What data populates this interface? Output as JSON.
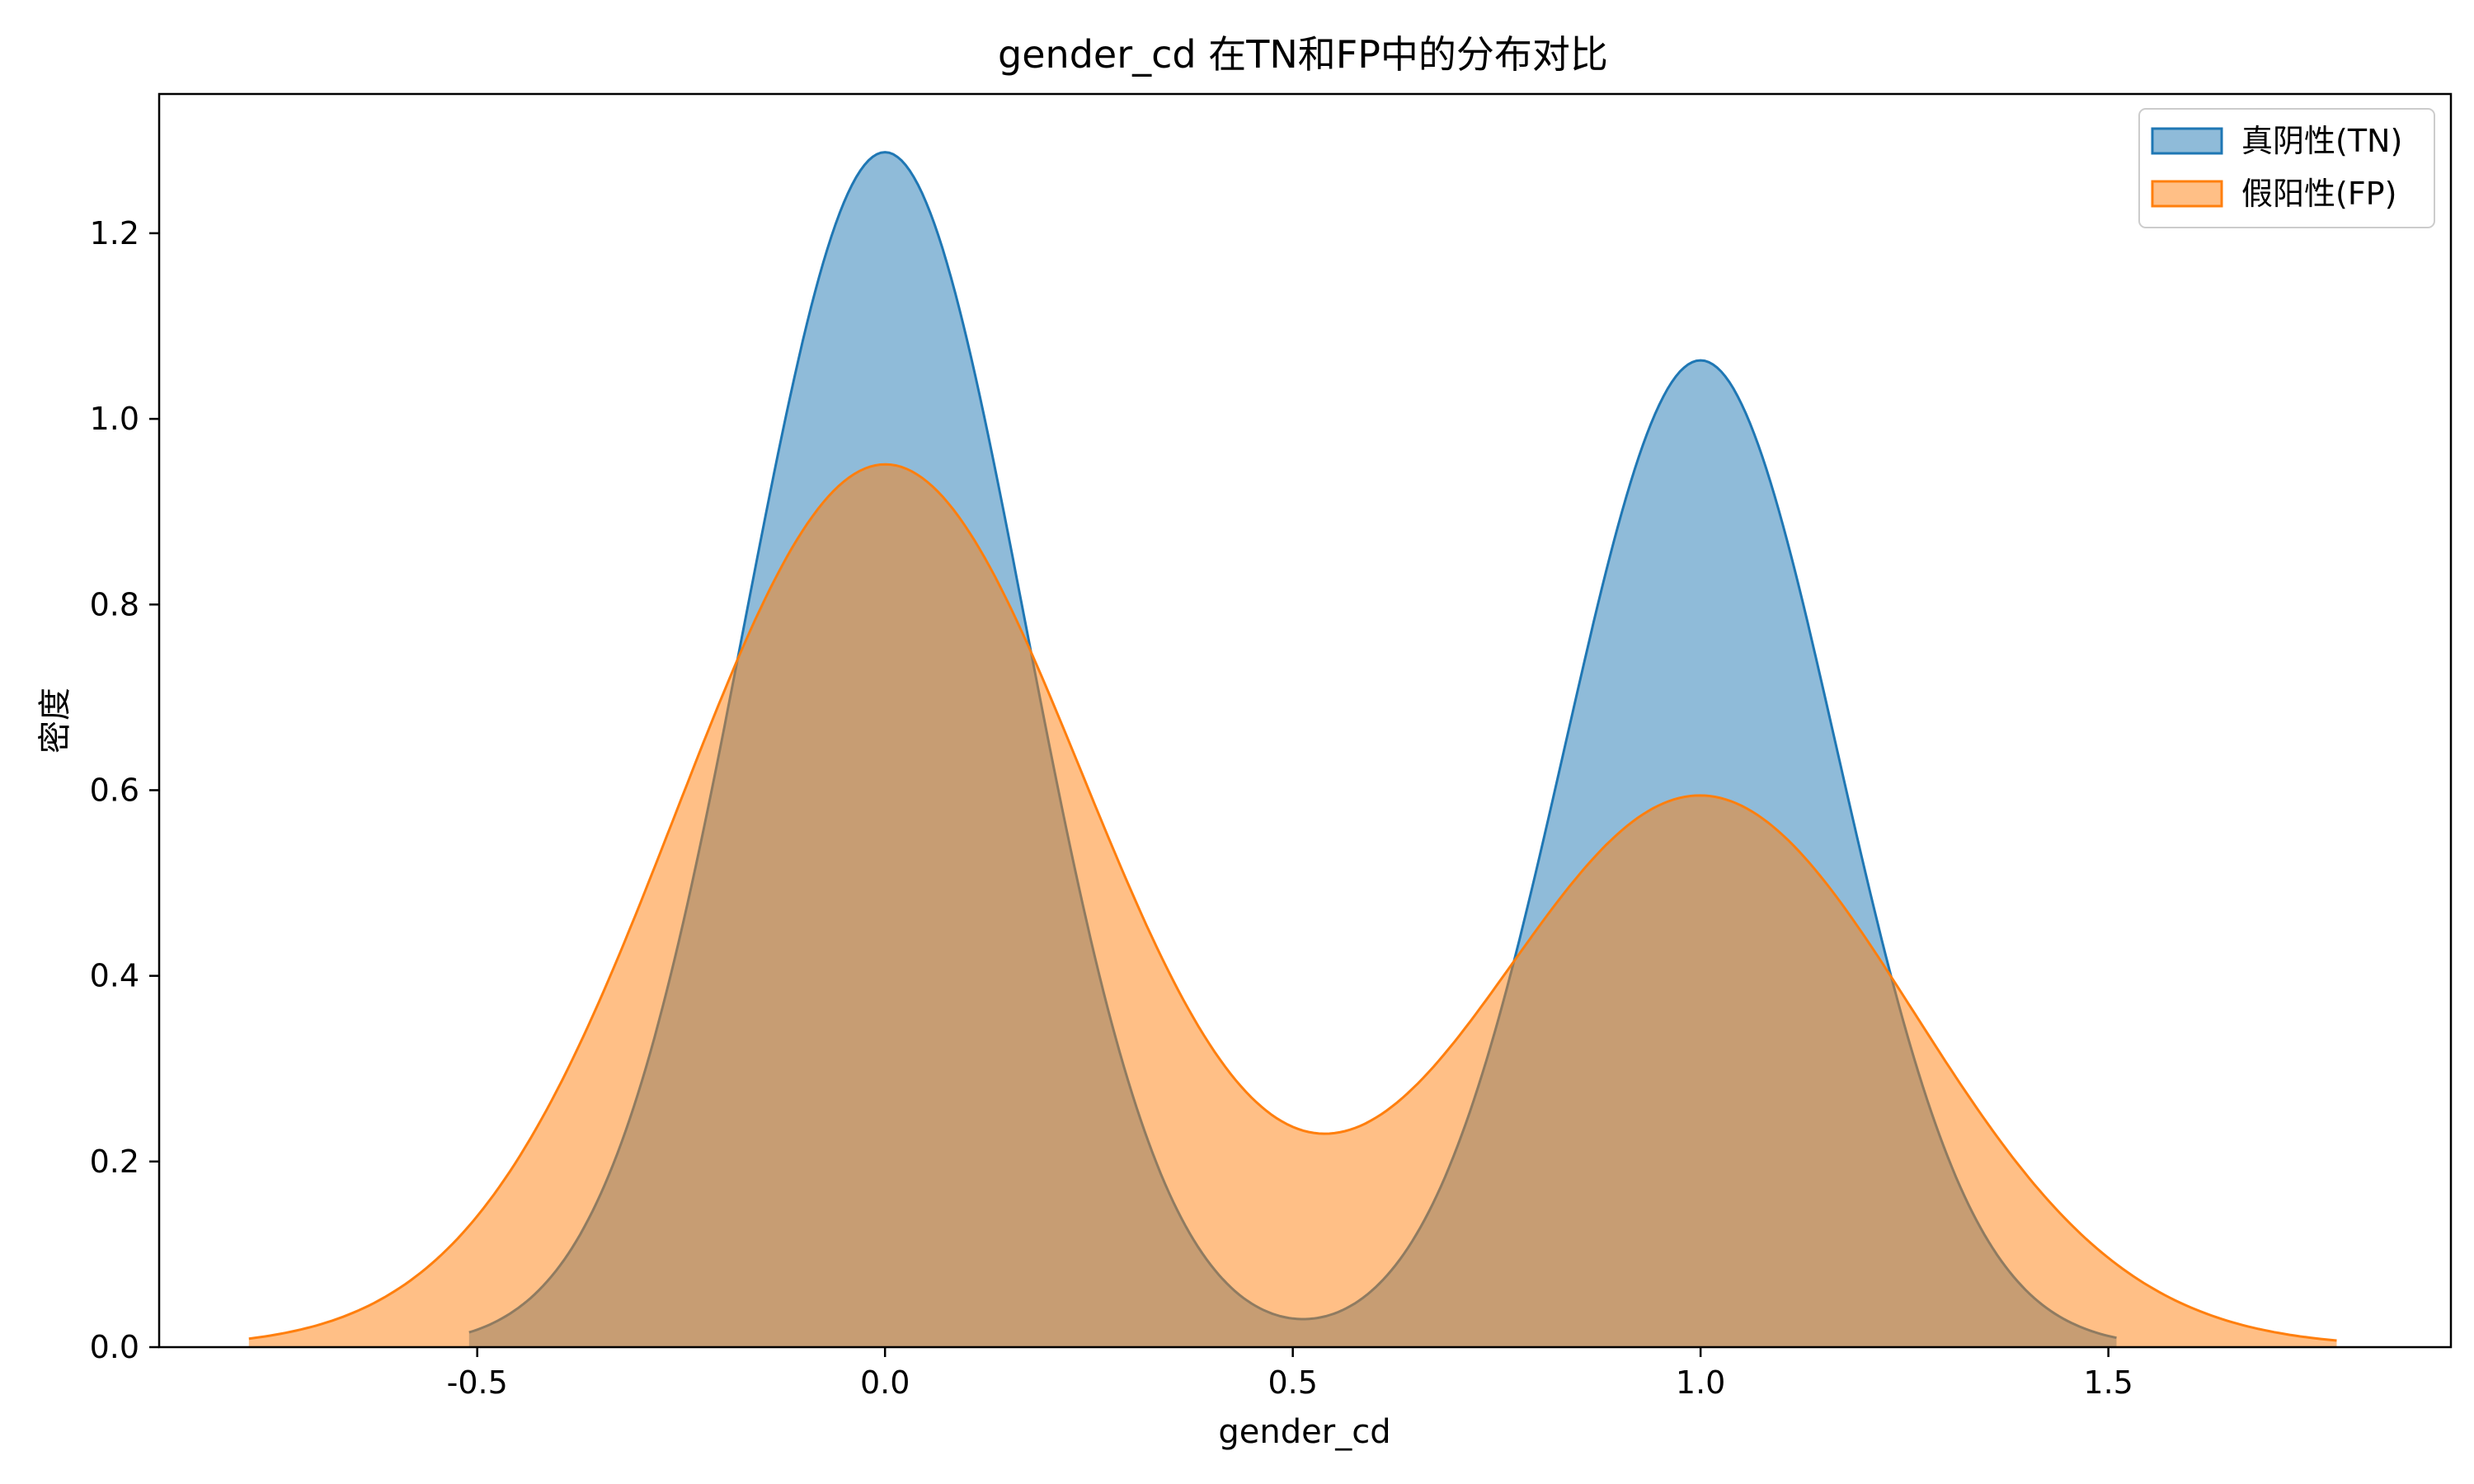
{
  "chart_data": {
    "type": "area",
    "title": "gender_cd 在TN和FP中的分布对比",
    "xlabel": "gender_cd",
    "ylabel": "密度",
    "xlim": [
      -0.89,
      1.92
    ],
    "ylim": [
      0,
      1.35
    ],
    "xticks": [
      -0.5,
      0.0,
      0.5,
      1.0,
      1.5
    ],
    "xtick_labels": [
      "-0.5",
      "0.0",
      "0.5",
      "1.0",
      "1.5"
    ],
    "yticks": [
      0.0,
      0.2,
      0.4,
      0.6,
      0.8,
      1.0,
      1.2
    ],
    "ytick_labels": [
      "0.0",
      "0.2",
      "0.4",
      "0.6",
      "0.8",
      "1.0",
      "1.2"
    ],
    "grid": false,
    "legend_position": "top-right",
    "series": [
      {
        "name": "真阴性(TN)",
        "color": "#1f77b4",
        "fill_opacity": 0.5,
        "x_range": [
          -0.51,
          1.51
        ],
        "components": [
          {
            "weight": 0.555,
            "mean": 0.0,
            "sd": 0.172
          },
          {
            "weight": 0.445,
            "mean": 1.0,
            "sd": 0.167
          }
        ],
        "peaks": [
          {
            "x": 0.0,
            "y": 1.29
          },
          {
            "x": 1.0,
            "y": 1.065
          }
        ],
        "valley": {
          "x": 0.5,
          "y": 0.03
        }
      },
      {
        "name": "假阳性(FP)",
        "color": "#ff7f0e",
        "fill_opacity": 0.5,
        "x_range": [
          -0.78,
          1.78
        ],
        "components": [
          {
            "weight": 0.61,
            "mean": 0.0,
            "sd": 0.256
          },
          {
            "weight": 0.39,
            "mean": 1.0,
            "sd": 0.262
          }
        ],
        "peaks": [
          {
            "x": 0.0,
            "y": 0.95
          },
          {
            "x": 1.0,
            "y": 0.593
          }
        ],
        "valley": {
          "x": 0.545,
          "y": 0.23
        }
      }
    ]
  }
}
